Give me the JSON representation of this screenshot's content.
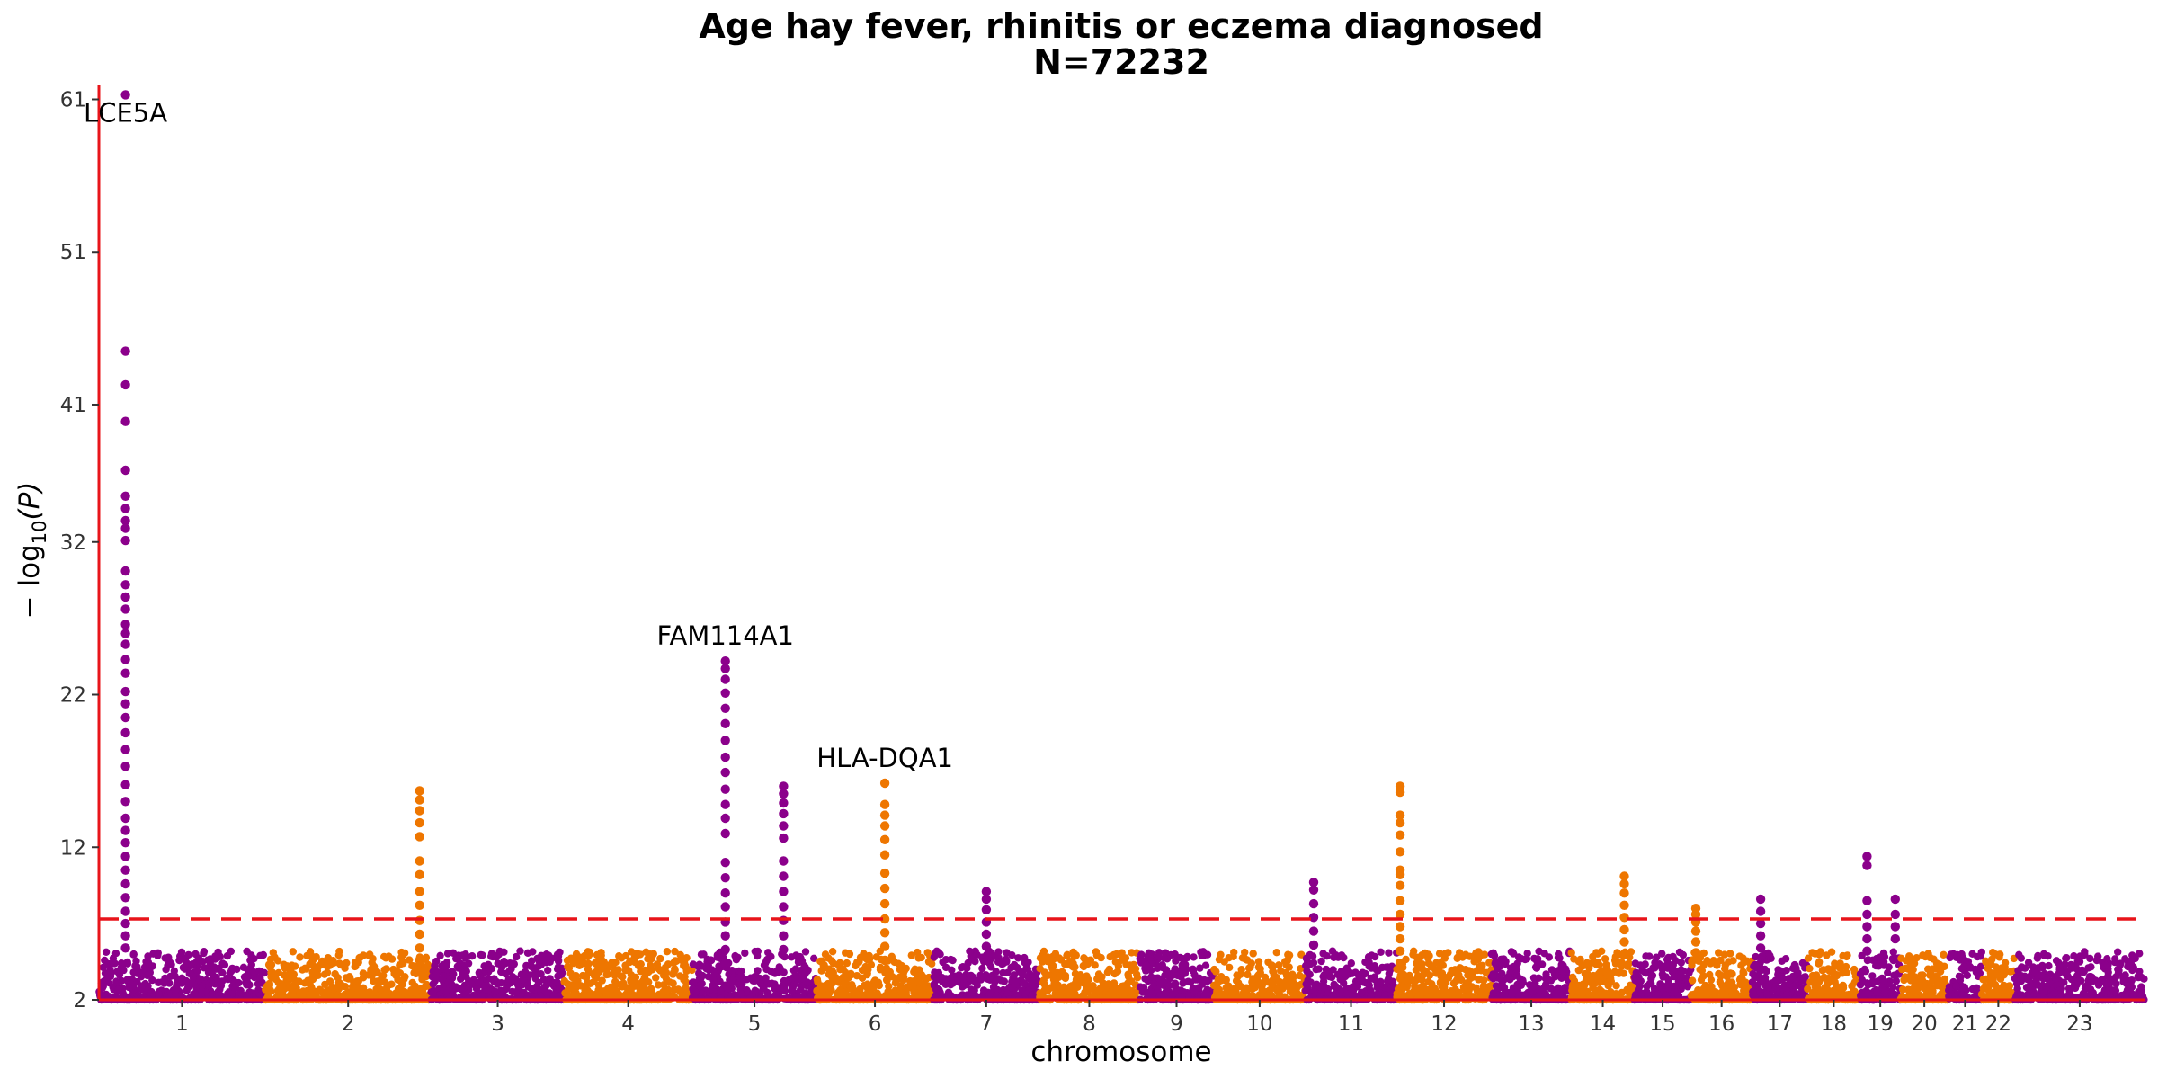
{
  "chart_data": {
    "type": "scatter",
    "subtype": "manhattan",
    "title": "Age hay fever, rhinitis or eczema diagnosed",
    "subtitle": "N=72232",
    "xlabel": "chromosome",
    "ylabel_prefix": "− log",
    "ylabel_sub": "10",
    "ylabel_suffix": "(P)",
    "ylim": [
      2,
      61.5
    ],
    "yticks": [
      2,
      12,
      22,
      32,
      41,
      51,
      61
    ],
    "significance_threshold": 7.3,
    "grid": false,
    "colors": {
      "odd": "#8B008B",
      "even": "#EE7600",
      "threshold": "#E8141A",
      "axis": "#E8141A"
    },
    "chromosomes": [
      {
        "label": "1",
        "start": 0.0,
        "end": 1.0
      },
      {
        "label": "2",
        "start": 1.0,
        "end": 2.0
      },
      {
        "label": "3",
        "start": 2.0,
        "end": 2.8
      },
      {
        "label": "4",
        "start": 2.8,
        "end": 3.57
      },
      {
        "label": "5",
        "start": 3.57,
        "end": 4.32
      },
      {
        "label": "6",
        "start": 4.32,
        "end": 5.02
      },
      {
        "label": "7",
        "start": 5.02,
        "end": 5.66
      },
      {
        "label": "8",
        "start": 5.66,
        "end": 6.26
      },
      {
        "label": "9",
        "start": 6.26,
        "end": 6.71
      },
      {
        "label": "10",
        "start": 6.71,
        "end": 7.26
      },
      {
        "label": "11",
        "start": 7.26,
        "end": 7.81
      },
      {
        "label": "12",
        "start": 7.81,
        "end": 8.38
      },
      {
        "label": "13",
        "start": 8.38,
        "end": 8.86
      },
      {
        "label": "14",
        "start": 8.86,
        "end": 9.24
      },
      {
        "label": "15",
        "start": 9.24,
        "end": 9.58
      },
      {
        "label": "16",
        "start": 9.58,
        "end": 9.95
      },
      {
        "label": "17",
        "start": 9.95,
        "end": 10.28
      },
      {
        "label": "18",
        "start": 10.28,
        "end": 10.6
      },
      {
        "label": "19",
        "start": 10.6,
        "end": 10.84
      },
      {
        "label": "20",
        "start": 10.84,
        "end": 11.13
      },
      {
        "label": "21",
        "start": 11.13,
        "end": 11.33
      },
      {
        "label": "22",
        "start": 11.33,
        "end": 11.53
      },
      {
        "label": "23",
        "start": 11.53,
        "end": 12.31
      }
    ],
    "peaks": [
      {
        "x": 0.16,
        "values": [
          61.3,
          44.5,
          42.3,
          39.9,
          36.7,
          35.0,
          34.2,
          33.4,
          32.9,
          32.1,
          30.1,
          29.2,
          28.4,
          27.6,
          26.6,
          26.0,
          25.3,
          24.3,
          23.4,
          22.2,
          21.4,
          20.5,
          19.5,
          18.4,
          17.3,
          16.1,
          15.0,
          13.9,
          13.1,
          12.3,
          11.4,
          10.5,
          9.6,
          8.7,
          7.8,
          7.0,
          6.2,
          5.4
        ]
      },
      {
        "x": 1.93,
        "values": [
          15.7,
          15.1,
          14.4,
          13.6,
          12.7,
          11.1,
          10.2,
          9.1,
          8.2,
          7.2,
          6.3,
          5.4,
          4.6
        ]
      },
      {
        "x": 3.77,
        "values": [
          24.2,
          23.7,
          23.0,
          22.1,
          21.1,
          20.1,
          19.0,
          17.9,
          16.9,
          15.8,
          14.8,
          13.9,
          12.9,
          11.0,
          10.0,
          9.0,
          8.1,
          7.1,
          6.2,
          5.3,
          4.4
        ]
      },
      {
        "x": 4.12,
        "values": [
          16.0,
          15.5,
          14.9,
          14.2,
          13.4,
          12.6,
          11.1,
          10.1,
          9.1,
          8.1,
          7.2,
          6.2,
          5.3
        ]
      },
      {
        "x": 4.73,
        "values": [
          16.2,
          14.8,
          14.1,
          13.4,
          12.5,
          11.5,
          10.3,
          9.3,
          8.3,
          7.3,
          6.4,
          5.5,
          4.6
        ]
      },
      {
        "x": 5.34,
        "values": [
          9.1,
          8.6,
          7.9,
          7.1,
          6.3,
          5.5
        ]
      },
      {
        "x": 7.31,
        "values": [
          9.7,
          9.2,
          8.3,
          7.4,
          6.5,
          5.6
        ]
      },
      {
        "x": 7.83,
        "values": [
          16.0,
          15.6,
          14.1,
          13.6,
          12.8,
          11.7,
          10.5,
          10.2,
          9.5,
          8.5,
          7.6,
          6.8,
          6.0,
          5.2,
          4.4
        ]
      },
      {
        "x": 9.18,
        "values": [
          10.1,
          9.6,
          9.0,
          8.2,
          7.4,
          6.6,
          5.8,
          5.0
        ]
      },
      {
        "x": 9.61,
        "values": [
          8.0,
          7.6,
          7.1,
          6.5,
          5.8,
          5.1
        ]
      },
      {
        "x": 10.0,
        "values": [
          8.6,
          7.8,
          7.0,
          6.2,
          5.4
        ]
      },
      {
        "x": 10.64,
        "values": [
          11.4,
          10.8,
          8.5,
          7.6,
          6.8,
          6.0,
          5.2
        ]
      },
      {
        "x": 10.81,
        "values": [
          8.6,
          7.6,
          6.8,
          6.0
        ]
      }
    ],
    "annotations": [
      {
        "label": "LCE5A",
        "x": 0.16,
        "y": 61.3
      },
      {
        "label": "FAM114A1",
        "x": 3.77,
        "y": 24.2
      },
      {
        "label": "HLA-DQA1",
        "x": 4.73,
        "y": 16.2
      }
    ]
  }
}
